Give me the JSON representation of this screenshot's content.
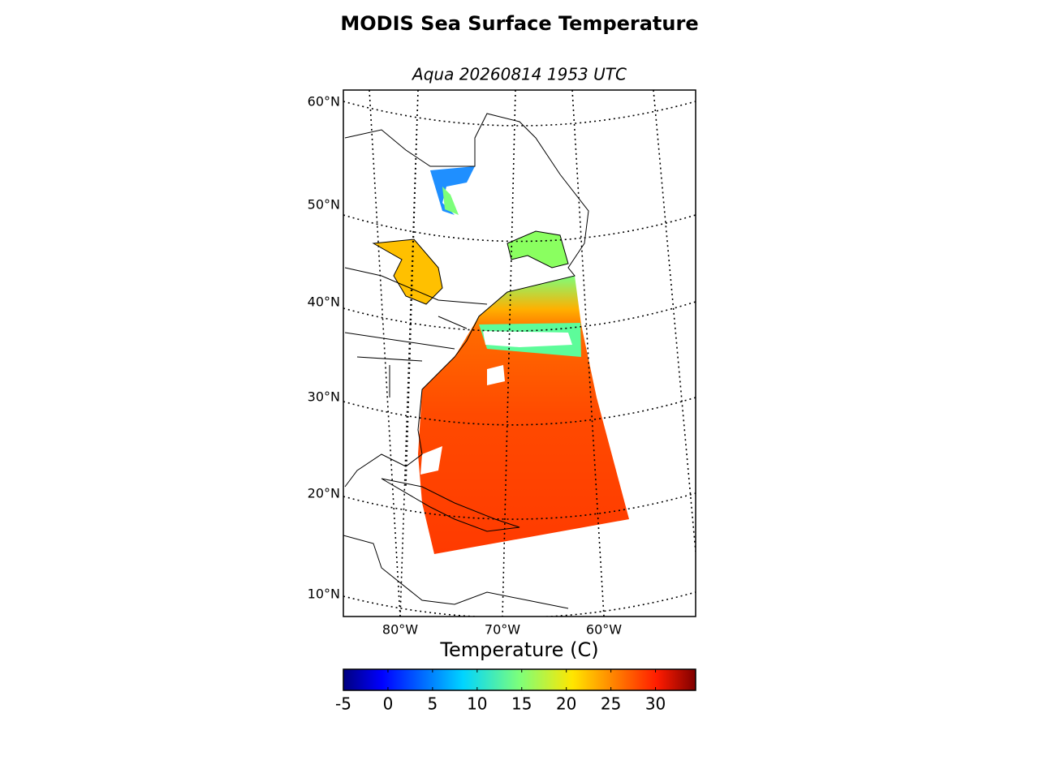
{
  "map": {
    "title": "MODIS Sea Surface Temperature",
    "subtitle": "Aqua 20260814 1953 UTC",
    "lat_labels": [
      "60°N",
      "50°N",
      "40°N",
      "30°N",
      "20°N",
      "10°N"
    ],
    "lon_labels": [
      "80°W",
      "70°W",
      "60°W"
    ]
  },
  "colorbar": {
    "label": "Temperature (C)",
    "range": [
      -5,
      34.5
    ],
    "ticks": [
      -5,
      0,
      5,
      10,
      15,
      20,
      25,
      30
    ]
  }
}
